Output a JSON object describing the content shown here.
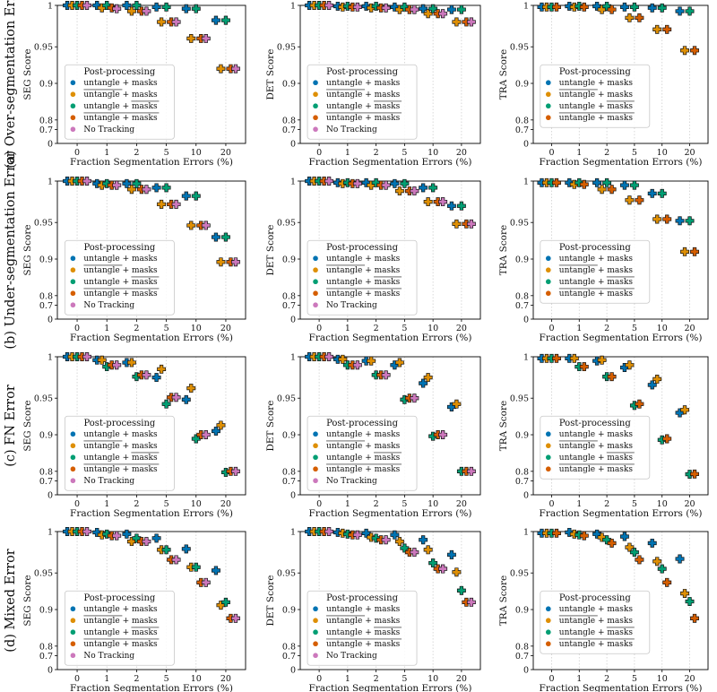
{
  "figure": {
    "row_labels": [
      "(a) Over-segmentation Error",
      "(b) Under-segmentation Error",
      "(c) FN Error",
      "(d) Mixed Error"
    ],
    "column_ylabels": [
      "SEG Score",
      "DET Score",
      "TRA Score"
    ],
    "xlabel": "Fraction Segmentation Errors (%)",
    "xticks": [
      "0",
      "1",
      "2",
      "5",
      "10",
      "20"
    ],
    "yticks": [
      {
        "label": "1",
        "value": 1.0
      },
      {
        "label": "0.95",
        "value": 0.95
      },
      {
        "label": "0.9",
        "value": 0.9
      },
      {
        "label": "0.8",
        "value": 0.8
      },
      {
        "label": "0.7",
        "value": 0.7
      },
      {
        "label": "0",
        "value": 0
      }
    ],
    "legend": {
      "title": "Post-processing",
      "entries": [
        {
          "label": "untangle + masks",
          "overline": "none",
          "color": "#0173b2"
        },
        {
          "label": "untangle + masks",
          "overline": "first",
          "color": "#de8f05"
        },
        {
          "label": "untangle + masks",
          "overline": "second",
          "color": "#029e73"
        },
        {
          "label": "untangle + masks",
          "overline": "both",
          "color": "#d55e00"
        },
        {
          "label": "No Tracking",
          "overline": "none",
          "color": "#cc78bc"
        }
      ]
    }
  },
  "chart_data": [
    {
      "type": "scatter",
      "row": "(a) Over-segmentation Error",
      "metric": "SEG Score",
      "x": [
        "0",
        "1",
        "2",
        "5",
        "10",
        "20"
      ],
      "series": [
        {
          "name": "untangle + masks",
          "values": [
            1.0,
            1.0,
            1.0,
            0.998,
            0.996,
            0.982
          ]
        },
        {
          "name": "untangle + masks (overline untangle)",
          "values": [
            1.0,
            0.997,
            0.993,
            0.98,
            0.96,
            0.92
          ]
        },
        {
          "name": "untangle + masks (overline masks)",
          "values": [
            1.0,
            1.0,
            1.0,
            0.998,
            0.996,
            0.982
          ]
        },
        {
          "name": "untangle + masks (overline both)",
          "values": [
            1.0,
            0.997,
            0.993,
            0.98,
            0.96,
            0.92
          ]
        },
        {
          "name": "No Tracking",
          "values": [
            1.0,
            0.996,
            0.993,
            0.98,
            0.96,
            0.92
          ]
        }
      ]
    },
    {
      "type": "scatter",
      "row": "(a) Over-segmentation Error",
      "metric": "DET Score",
      "x": [
        "0",
        "1",
        "2",
        "5",
        "10",
        "20"
      ],
      "series": [
        {
          "name": "untangle + masks",
          "values": [
            1.0,
            0.999,
            0.999,
            0.998,
            0.996,
            0.995
          ]
        },
        {
          "name": "untangle + masks (overline untangle)",
          "values": [
            1.0,
            0.998,
            0.997,
            0.995,
            0.99,
            0.98
          ]
        },
        {
          "name": "untangle + masks (overline masks)",
          "values": [
            1.0,
            0.999,
            0.999,
            0.998,
            0.996,
            0.995
          ]
        },
        {
          "name": "untangle + masks (overline both)",
          "values": [
            1.0,
            0.998,
            0.997,
            0.995,
            0.99,
            0.98
          ]
        },
        {
          "name": "No Tracking",
          "values": [
            1.0,
            0.998,
            0.997,
            0.995,
            0.99,
            0.98
          ]
        }
      ]
    },
    {
      "type": "scatter",
      "row": "(a) Over-segmentation Error",
      "metric": "TRA Score",
      "x": [
        "0",
        "1",
        "2",
        "5",
        "10",
        "20"
      ],
      "series": [
        {
          "name": "untangle + masks",
          "values": [
            0.998,
            0.999,
            0.999,
            0.998,
            0.997,
            0.993
          ]
        },
        {
          "name": "untangle + masks (overline untangle)",
          "values": [
            0.998,
            0.998,
            0.995,
            0.985,
            0.971,
            0.945
          ]
        },
        {
          "name": "untangle + masks (overline masks)",
          "values": [
            0.998,
            0.999,
            0.999,
            0.998,
            0.997,
            0.993
          ]
        },
        {
          "name": "untangle + masks (overline both)",
          "values": [
            0.998,
            0.998,
            0.995,
            0.985,
            0.971,
            0.945
          ]
        }
      ]
    },
    {
      "type": "scatter",
      "row": "(b) Under-segmentation Error",
      "metric": "SEG Score",
      "x": [
        "0",
        "1",
        "2",
        "5",
        "10",
        "20"
      ],
      "series": [
        {
          "name": "untangle + masks",
          "values": [
            1.0,
            0.997,
            0.997,
            0.992,
            0.982,
            0.93
          ]
        },
        {
          "name": "untangle + masks (overline untangle)",
          "values": [
            1.0,
            0.995,
            0.99,
            0.972,
            0.946,
            0.892
          ]
        },
        {
          "name": "untangle + masks (overline masks)",
          "values": [
            1.0,
            0.997,
            0.997,
            0.992,
            0.982,
            0.93
          ]
        },
        {
          "name": "untangle + masks (overline both)",
          "values": [
            1.0,
            0.995,
            0.99,
            0.972,
            0.946,
            0.892
          ]
        },
        {
          "name": "No Tracking",
          "values": [
            1.0,
            0.995,
            0.99,
            0.972,
            0.946,
            0.892
          ]
        }
      ]
    },
    {
      "type": "scatter",
      "row": "(b) Under-segmentation Error",
      "metric": "DET Score",
      "x": [
        "0",
        "1",
        "2",
        "5",
        "10",
        "20"
      ],
      "series": [
        {
          "name": "untangle + masks",
          "values": [
            1.0,
            0.998,
            0.998,
            0.997,
            0.992,
            0.97
          ]
        },
        {
          "name": "untangle + masks (overline untangle)",
          "values": [
            1.0,
            0.997,
            0.995,
            0.988,
            0.975,
            0.948
          ]
        },
        {
          "name": "untangle + masks (overline masks)",
          "values": [
            1.0,
            0.998,
            0.998,
            0.997,
            0.992,
            0.97
          ]
        },
        {
          "name": "untangle + masks (overline both)",
          "values": [
            1.0,
            0.997,
            0.995,
            0.988,
            0.975,
            0.948
          ]
        },
        {
          "name": "No Tracking",
          "values": [
            1.0,
            0.997,
            0.995,
            0.988,
            0.975,
            0.948
          ]
        }
      ]
    },
    {
      "type": "scatter",
      "row": "(b) Under-segmentation Error",
      "metric": "TRA Score",
      "x": [
        "0",
        "1",
        "2",
        "5",
        "10",
        "20"
      ],
      "series": [
        {
          "name": "untangle + masks",
          "values": [
            0.998,
            0.998,
            0.998,
            0.995,
            0.985,
            0.952
          ]
        },
        {
          "name": "untangle + masks (overline untangle)",
          "values": [
            0.998,
            0.996,
            0.99,
            0.977,
            0.954,
            0.91
          ]
        },
        {
          "name": "untangle + masks (overline masks)",
          "values": [
            0.998,
            0.998,
            0.998,
            0.995,
            0.985,
            0.952
          ]
        },
        {
          "name": "untangle + masks (overline both)",
          "values": [
            0.998,
            0.996,
            0.99,
            0.977,
            0.954,
            0.91
          ]
        }
      ]
    },
    {
      "type": "scatter",
      "row": "(c) FN Error",
      "metric": "SEG Score",
      "x": [
        "0",
        "1",
        "2",
        "5",
        "10",
        "20"
      ],
      "series": [
        {
          "name": "untangle + masks",
          "values": [
            1.0,
            0.996,
            0.993,
            0.975,
            0.948,
            0.905
          ]
        },
        {
          "name": "untangle + masks (overline untangle)",
          "values": [
            1.0,
            0.996,
            0.993,
            0.985,
            0.962,
            0.913
          ]
        },
        {
          "name": "untangle + masks (overline masks)",
          "values": [
            1.0,
            0.988,
            0.976,
            0.942,
            0.889,
            0.79
          ]
        },
        {
          "name": "untangle + masks (overline both)",
          "values": [
            1.0,
            0.99,
            0.978,
            0.951,
            0.9,
            0.8
          ]
        },
        {
          "name": "No Tracking",
          "values": [
            1.0,
            0.99,
            0.978,
            0.951,
            0.9,
            0.8
          ]
        }
      ]
    },
    {
      "type": "scatter",
      "row": "(c) FN Error",
      "metric": "DET Score",
      "x": [
        "0",
        "1",
        "2",
        "5",
        "10",
        "20"
      ],
      "series": [
        {
          "name": "untangle + masks",
          "values": [
            1.0,
            0.997,
            0.995,
            0.99,
            0.968,
            0.938
          ]
        },
        {
          "name": "untangle + masks (overline untangle)",
          "values": [
            1.0,
            0.997,
            0.995,
            0.993,
            0.975,
            0.942
          ]
        },
        {
          "name": "untangle + masks (overline masks)",
          "values": [
            1.0,
            0.99,
            0.978,
            0.948,
            0.896,
            0.8
          ]
        },
        {
          "name": "untangle + masks (overline both)",
          "values": [
            1.0,
            0.99,
            0.978,
            0.95,
            0.9,
            0.8
          ]
        },
        {
          "name": "No Tracking",
          "values": [
            1.0,
            0.99,
            0.978,
            0.95,
            0.9,
            0.8
          ]
        }
      ]
    },
    {
      "type": "scatter",
      "row": "(c) FN Error",
      "metric": "TRA Score",
      "x": [
        "0",
        "1",
        "2",
        "5",
        "10",
        "20"
      ],
      "series": [
        {
          "name": "untangle + masks",
          "values": [
            0.998,
            0.998,
            0.995,
            0.987,
            0.966,
            0.93
          ]
        },
        {
          "name": "untangle + masks (overline untangle)",
          "values": [
            0.998,
            0.998,
            0.996,
            0.99,
            0.973,
            0.934
          ]
        },
        {
          "name": "untangle + masks (overline masks)",
          "values": [
            0.998,
            0.988,
            0.976,
            0.94,
            0.886,
            0.77
          ]
        },
        {
          "name": "untangle + masks (overline both)",
          "values": [
            0.998,
            0.988,
            0.976,
            0.942,
            0.889,
            0.772
          ]
        }
      ]
    },
    {
      "type": "scatter",
      "row": "(d) Mixed Error",
      "metric": "SEG Score",
      "x": [
        "0",
        "1",
        "2",
        "5",
        "10",
        "20"
      ],
      "series": [
        {
          "name": "untangle + masks",
          "values": [
            1.0,
            0.999,
            0.997,
            0.992,
            0.979,
            0.953
          ]
        },
        {
          "name": "untangle + masks (overline untangle)",
          "values": [
            1.0,
            0.996,
            0.988,
            0.978,
            0.957,
            0.906
          ]
        },
        {
          "name": "untangle + masks (overline masks)",
          "values": [
            1.0,
            0.997,
            0.992,
            0.978,
            0.957,
            0.91
          ]
        },
        {
          "name": "untangle + masks (overline both)",
          "values": [
            1.0,
            0.995,
            0.988,
            0.966,
            0.937,
            0.876
          ]
        },
        {
          "name": "No Tracking",
          "values": [
            1.0,
            0.995,
            0.988,
            0.966,
            0.937,
            0.876
          ]
        }
      ]
    },
    {
      "type": "scatter",
      "row": "(d) Mixed Error",
      "metric": "DET Score",
      "x": [
        "0",
        "1",
        "2",
        "5",
        "10",
        "20"
      ],
      "series": [
        {
          "name": "untangle + masks",
          "values": [
            1.0,
            0.999,
            0.998,
            0.996,
            0.99,
            0.972
          ]
        },
        {
          "name": "untangle + masks (overline untangle)",
          "values": [
            1.0,
            0.998,
            0.993,
            0.988,
            0.978,
            0.951
          ]
        },
        {
          "name": "untangle + masks (overline masks)",
          "values": [
            1.0,
            0.997,
            0.992,
            0.98,
            0.962,
            0.926
          ]
        },
        {
          "name": "untangle + masks (overline both)",
          "values": [
            1.0,
            0.996,
            0.99,
            0.975,
            0.955,
            0.91
          ]
        },
        {
          "name": "No Tracking",
          "values": [
            1.0,
            0.996,
            0.99,
            0.975,
            0.955,
            0.91
          ]
        }
      ]
    },
    {
      "type": "scatter",
      "row": "(d) Mixed Error",
      "metric": "TRA Score",
      "x": [
        "0",
        "1",
        "2",
        "5",
        "10",
        "20"
      ],
      "series": [
        {
          "name": "untangle + masks",
          "values": [
            0.998,
            0.999,
            0.997,
            0.994,
            0.986,
            0.967
          ]
        },
        {
          "name": "untangle + masks (overline untangle)",
          "values": [
            0.998,
            0.997,
            0.993,
            0.981,
            0.964,
            0.922
          ]
        },
        {
          "name": "untangle + masks (overline masks)",
          "values": [
            0.998,
            0.996,
            0.99,
            0.975,
            0.955,
            0.911
          ]
        },
        {
          "name": "untangle + masks (overline both)",
          "values": [
            0.998,
            0.995,
            0.986,
            0.966,
            0.937,
            0.876
          ]
        }
      ]
    }
  ]
}
